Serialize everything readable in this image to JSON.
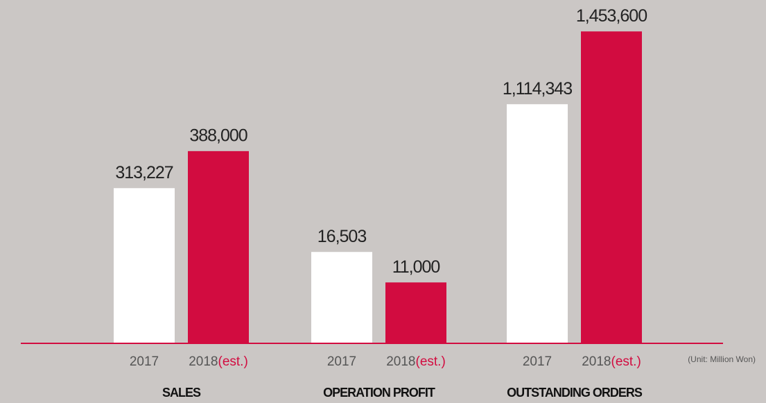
{
  "unit": "(Unit: Million Won)",
  "chart_data": [
    {
      "type": "bar",
      "title": "SALES",
      "categories": [
        "2017",
        "2018"
      ],
      "estimated": [
        false,
        true
      ],
      "estimate_label": "(est.)",
      "values": [
        313227,
        388000
      ],
      "value_labels": [
        "313,227",
        "388,000"
      ],
      "colors": [
        "#ffffff",
        "#d20c40"
      ],
      "ylim": [
        0,
        693000
      ]
    },
    {
      "type": "bar",
      "title": "OPERATION PROFIT",
      "categories": [
        "2017",
        "2018"
      ],
      "estimated": [
        false,
        true
      ],
      "estimate_label": "(est.)",
      "values": [
        16503,
        11000
      ],
      "value_labels": [
        "16,503",
        "11,000"
      ],
      "colors": [
        "#ffffff",
        "#d20c40"
      ],
      "ylim": [
        0,
        62000
      ]
    },
    {
      "type": "bar",
      "title": "OUTSTANDING ORDERS",
      "categories": [
        "2017",
        "2018"
      ],
      "estimated": [
        false,
        true
      ],
      "estimate_label": "(est.)",
      "values": [
        1114343,
        1453600
      ],
      "value_labels": [
        "1,114,343",
        "1,453,600"
      ],
      "colors": [
        "#ffffff",
        "#d20c40"
      ],
      "ylim": [
        0,
        1600000
      ]
    }
  ]
}
